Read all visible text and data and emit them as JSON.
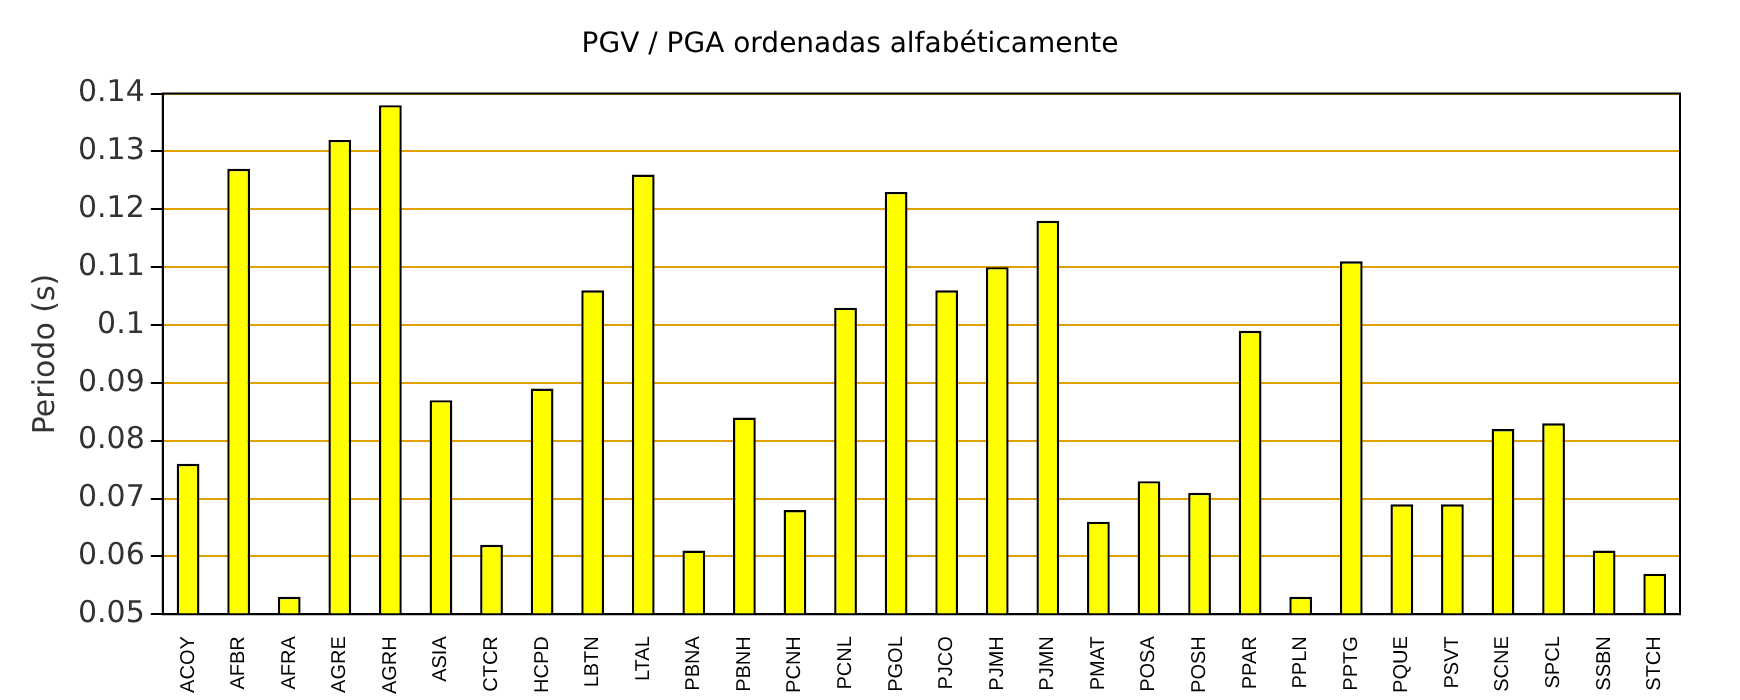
{
  "chart_data": {
    "type": "bar",
    "title": "PGV / PGA ordenadas alfabéticamente",
    "ylabel": "Periodo (s)",
    "categories": [
      "ACOY",
      "AFBR",
      "AFRA",
      "AGRE",
      "AGRH",
      "ASIA",
      "CTCR",
      "HCPD",
      "LBTN",
      "LTAL",
      "PBNA",
      "PBNH",
      "PCNH",
      "PCNL",
      "PGOL",
      "PJCO",
      "PJMH",
      "PJMN",
      "PMAT",
      "POSA",
      "POSH",
      "PPAR",
      "PPLN",
      "PPTG",
      "PQUE",
      "PSVT",
      "SCNE",
      "SPCL",
      "SSBN",
      "STCH"
    ],
    "values": [
      0.076,
      0.127,
      0.053,
      0.132,
      0.138,
      0.087,
      0.062,
      0.089,
      0.106,
      0.126,
      0.061,
      0.084,
      0.068,
      0.103,
      0.123,
      0.106,
      0.11,
      0.118,
      0.066,
      0.073,
      0.071,
      0.099,
      0.053,
      0.111,
      0.069,
      0.069,
      0.082,
      0.083,
      0.061,
      0.057
    ],
    "color": "#ffff00",
    "ylim": [
      0.05,
      0.14
    ],
    "yticks": [
      0.05,
      0.06,
      0.07,
      0.08,
      0.09,
      0.1,
      0.11,
      0.12,
      0.13,
      0.14
    ],
    "grid": "y",
    "legend": false
  }
}
